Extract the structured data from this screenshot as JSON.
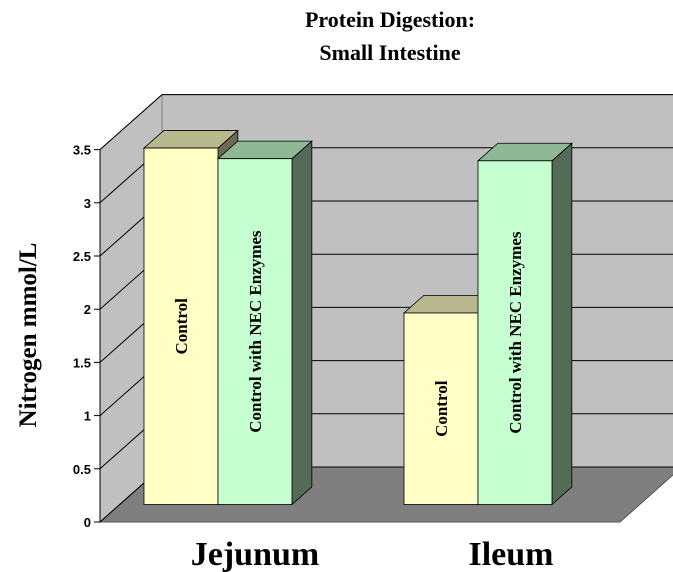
{
  "chart_data": {
    "type": "bar",
    "title": "Protein Digestion:",
    "subtitle": "Small Intestine",
    "ylabel": "Nitrogen mmol/L",
    "xlabel": "",
    "categories": [
      "Jejunum",
      "Ileum"
    ],
    "yticks": [
      "0",
      "0.5",
      "1",
      "1.5",
      "2",
      "2.5",
      "3",
      "3.5"
    ],
    "ylim": [
      0,
      3.5
    ],
    "grid": true,
    "style": "3d-clustered-column",
    "series": [
      {
        "name": "Control",
        "values": [
          3.35,
          1.8
        ],
        "color": "#ffffc6"
      },
      {
        "name": "Control with NEC Enzymes",
        "values": [
          3.25,
          3.23
        ],
        "color": "#c6ffd0"
      }
    ],
    "colors": {
      "wall": "#c0c0c0",
      "floor": "#7f7f7f",
      "gridline": "#000000"
    }
  }
}
